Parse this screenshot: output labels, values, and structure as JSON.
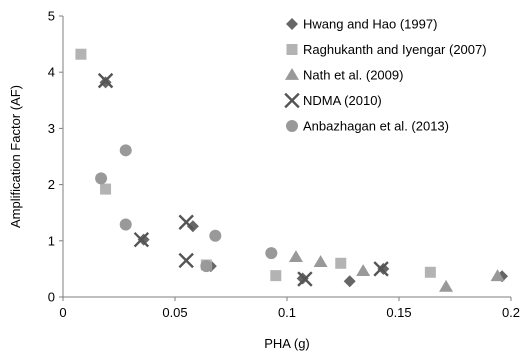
{
  "chart_data": {
    "type": "scatter",
    "title": "",
    "xlabel": "PHA (g)",
    "ylabel": "Amplification Factor (AF)",
    "xlim": [
      0,
      0.2
    ],
    "ylim": [
      0,
      5
    ],
    "x_ticks": [
      "0",
      "0.05",
      "0.1",
      "0.15",
      "0.2"
    ],
    "y_ticks": [
      "0",
      "1",
      "2",
      "3",
      "4",
      "5"
    ],
    "grid": false,
    "legend_position": "top-right",
    "series": [
      {
        "name": "Hwang and Hao (1997)",
        "marker": "diamond",
        "color": "#666666",
        "points": [
          [
            0.019,
            3.82
          ],
          [
            0.036,
            1.02
          ],
          [
            0.058,
            1.26
          ],
          [
            0.066,
            0.55
          ],
          [
            0.107,
            0.33
          ],
          [
            0.128,
            0.28
          ],
          [
            0.143,
            0.5
          ],
          [
            0.196,
            0.37
          ]
        ]
      },
      {
        "name": "Raghukanth and Iyengar (2007)",
        "marker": "square",
        "color": "#b3b3b3",
        "points": [
          [
            0.008,
            4.32
          ],
          [
            0.019,
            1.92
          ],
          [
            0.064,
            0.57
          ],
          [
            0.095,
            0.38
          ],
          [
            0.124,
            0.6
          ],
          [
            0.164,
            0.44
          ]
        ]
      },
      {
        "name": "Nath et al. (2009)",
        "marker": "triangle",
        "color": "#999999",
        "points": [
          [
            0.104,
            0.71
          ],
          [
            0.115,
            0.62
          ],
          [
            0.134,
            0.46
          ],
          [
            0.171,
            0.18
          ],
          [
            0.194,
            0.37
          ]
        ]
      },
      {
        "name": "NDMA (2010)",
        "marker": "x",
        "color": "#555555",
        "points": [
          [
            0.019,
            3.85
          ],
          [
            0.035,
            1.02
          ],
          [
            0.055,
            1.33
          ],
          [
            0.055,
            0.65
          ],
          [
            0.108,
            0.32
          ],
          [
            0.142,
            0.5
          ]
        ]
      },
      {
        "name": "Anbazhagan et al. (2013)",
        "marker": "circle",
        "color": "#999999",
        "points": [
          [
            0.017,
            2.11
          ],
          [
            0.028,
            2.61
          ],
          [
            0.028,
            1.29
          ],
          [
            0.064,
            0.55
          ],
          [
            0.068,
            1.09
          ],
          [
            0.093,
            0.78
          ]
        ]
      }
    ]
  }
}
